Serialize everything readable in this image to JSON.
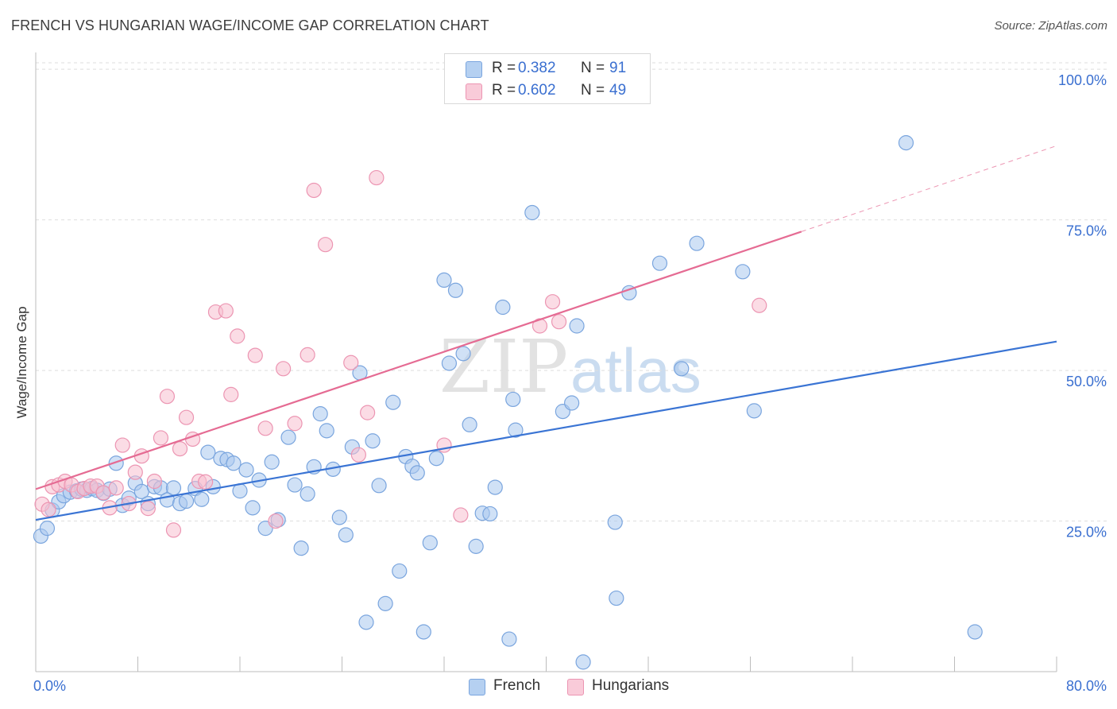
{
  "title": "FRENCH VS HUNGARIAN WAGE/INCOME GAP CORRELATION CHART",
  "source": "Source: ZipAtlas.com",
  "watermark": {
    "zip": "ZIP",
    "atlas": "atlas"
  },
  "legend_top": [
    {
      "r_label": "R =",
      "r_value": "0.382",
      "n_label": "N =",
      "n_value": "91"
    },
    {
      "r_label": "R =",
      "r_value": "0.602",
      "n_label": "N =",
      "n_value": "49"
    }
  ],
  "legend_bottom": [
    "French",
    "Hungarians"
  ],
  "chart_data": {
    "type": "scatter",
    "title": "FRENCH VS HUNGARIAN WAGE/INCOME GAP CORRELATION CHART",
    "xlabel": "",
    "ylabel": "Wage/Income Gap",
    "xlim": [
      0,
      80
    ],
    "ylim": [
      0,
      102
    ],
    "x_tick_labels": [
      "0.0%",
      "80.0%"
    ],
    "y_ticks": [
      25,
      50,
      75,
      100
    ],
    "y_tick_labels": [
      "25.0%",
      "50.0%",
      "75.0%",
      "100.0%"
    ],
    "grid": true,
    "legend_position": "top-center",
    "colors": {
      "French": {
        "fill": "#a9c8ef",
        "stroke": "#7aa5de",
        "line": "#3a74d4"
      },
      "Hungarians": {
        "fill": "#f7bfd0",
        "stroke": "#ec95b2",
        "line": "#e56b93"
      }
    },
    "series": [
      {
        "name": "French",
        "r": 0.382,
        "n": 91,
        "trend": {
          "x": [
            0,
            80
          ],
          "y": [
            25.2,
            54.8
          ]
        },
        "points": [
          [
            0.4,
            22.5
          ],
          [
            0.9,
            23.8
          ],
          [
            1.3,
            26.8
          ],
          [
            1.8,
            28.2
          ],
          [
            2.2,
            29.2
          ],
          [
            2.7,
            29.8
          ],
          [
            3.2,
            30.0
          ],
          [
            3.6,
            30.3
          ],
          [
            4.0,
            30.1
          ],
          [
            4.4,
            30.4
          ],
          [
            4.8,
            30.1
          ],
          [
            5.3,
            29.6
          ],
          [
            5.8,
            30.3
          ],
          [
            6.3,
            34.6
          ],
          [
            6.8,
            27.6
          ],
          [
            7.3,
            28.8
          ],
          [
            7.8,
            31.3
          ],
          [
            8.3,
            29.9
          ],
          [
            8.8,
            27.9
          ],
          [
            9.3,
            30.7
          ],
          [
            9.8,
            30.5
          ],
          [
            10.3,
            28.5
          ],
          [
            10.8,
            30.5
          ],
          [
            11.3,
            27.9
          ],
          [
            11.8,
            28.3
          ],
          [
            12.5,
            30.4
          ],
          [
            13.0,
            28.6
          ],
          [
            13.5,
            36.4
          ],
          [
            13.9,
            30.7
          ],
          [
            14.5,
            35.4
          ],
          [
            15.0,
            35.2
          ],
          [
            15.5,
            34.6
          ],
          [
            16.0,
            30.0
          ],
          [
            16.5,
            33.5
          ],
          [
            17.0,
            27.2
          ],
          [
            17.5,
            31.8
          ],
          [
            18.0,
            23.8
          ],
          [
            18.5,
            34.8
          ],
          [
            19.0,
            25.2
          ],
          [
            19.8,
            38.9
          ],
          [
            20.3,
            31.0
          ],
          [
            20.8,
            20.5
          ],
          [
            21.3,
            29.5
          ],
          [
            21.8,
            34.0
          ],
          [
            22.3,
            42.8
          ],
          [
            22.8,
            40.0
          ],
          [
            23.3,
            33.6
          ],
          [
            23.8,
            25.6
          ],
          [
            24.3,
            22.7
          ],
          [
            24.8,
            37.3
          ],
          [
            25.4,
            49.6
          ],
          [
            25.9,
            8.2
          ],
          [
            26.4,
            38.3
          ],
          [
            26.9,
            30.9
          ],
          [
            27.4,
            11.3
          ],
          [
            28.0,
            44.7
          ],
          [
            28.5,
            16.7
          ],
          [
            29.0,
            35.7
          ],
          [
            29.5,
            34.1
          ],
          [
            29.9,
            33.0
          ],
          [
            30.4,
            6.6
          ],
          [
            30.9,
            21.4
          ],
          [
            31.4,
            35.4
          ],
          [
            32.0,
            65.0
          ],
          [
            32.4,
            51.2
          ],
          [
            32.9,
            63.3
          ],
          [
            33.5,
            52.8
          ],
          [
            34.0,
            41.0
          ],
          [
            34.5,
            20.8
          ],
          [
            35.0,
            26.3
          ],
          [
            35.6,
            26.2
          ],
          [
            36.0,
            30.6
          ],
          [
            36.6,
            60.5
          ],
          [
            37.1,
            5.4
          ],
          [
            37.4,
            45.2
          ],
          [
            37.6,
            40.1
          ],
          [
            38.9,
            76.2
          ],
          [
            41.3,
            43.2
          ],
          [
            42.0,
            44.6
          ],
          [
            42.4,
            57.4
          ],
          [
            42.9,
            1.6
          ],
          [
            45.4,
            24.8
          ],
          [
            45.5,
            12.2
          ],
          [
            46.5,
            62.9
          ],
          [
            48.9,
            67.8
          ],
          [
            50.6,
            50.3
          ],
          [
            51.8,
            71.1
          ],
          [
            55.4,
            66.4
          ],
          [
            56.3,
            43.3
          ],
          [
            68.2,
            87.8
          ],
          [
            73.6,
            6.6
          ]
        ]
      },
      {
        "name": "Hungarians",
        "r": 0.602,
        "n": 49,
        "trend": {
          "x": [
            0,
            80
          ],
          "y": [
            30.3,
            87.3
          ]
        },
        "trend_solid_until": 60,
        "points": [
          [
            0.5,
            27.8
          ],
          [
            1.0,
            26.9
          ],
          [
            1.3,
            30.7
          ],
          [
            1.8,
            31.0
          ],
          [
            2.3,
            31.6
          ],
          [
            2.8,
            31.0
          ],
          [
            3.3,
            29.9
          ],
          [
            3.8,
            30.4
          ],
          [
            4.3,
            30.8
          ],
          [
            4.8,
            30.8
          ],
          [
            5.3,
            29.7
          ],
          [
            5.8,
            27.2
          ],
          [
            6.3,
            30.5
          ],
          [
            6.8,
            37.6
          ],
          [
            7.3,
            27.9
          ],
          [
            7.8,
            33.1
          ],
          [
            8.3,
            35.8
          ],
          [
            8.8,
            27.1
          ],
          [
            9.3,
            31.6
          ],
          [
            9.8,
            38.8
          ],
          [
            10.3,
            45.7
          ],
          [
            10.8,
            23.5
          ],
          [
            11.3,
            37.0
          ],
          [
            11.8,
            42.2
          ],
          [
            12.3,
            38.6
          ],
          [
            12.8,
            31.6
          ],
          [
            13.3,
            31.5
          ],
          [
            14.1,
            59.7
          ],
          [
            14.9,
            59.9
          ],
          [
            15.3,
            46.0
          ],
          [
            15.8,
            55.7
          ],
          [
            17.2,
            52.5
          ],
          [
            18.0,
            40.4
          ],
          [
            18.8,
            25.0
          ],
          [
            19.4,
            50.3
          ],
          [
            20.3,
            41.2
          ],
          [
            21.3,
            52.6
          ],
          [
            21.8,
            79.9
          ],
          [
            22.7,
            70.9
          ],
          [
            24.7,
            51.3
          ],
          [
            25.3,
            36.0
          ],
          [
            26.0,
            43.0
          ],
          [
            26.7,
            82.0
          ],
          [
            32.0,
            37.6
          ],
          [
            33.3,
            26.0
          ],
          [
            39.5,
            57.4
          ],
          [
            40.5,
            61.4
          ],
          [
            41.0,
            58.1
          ],
          [
            56.7,
            60.8
          ]
        ]
      }
    ]
  }
}
